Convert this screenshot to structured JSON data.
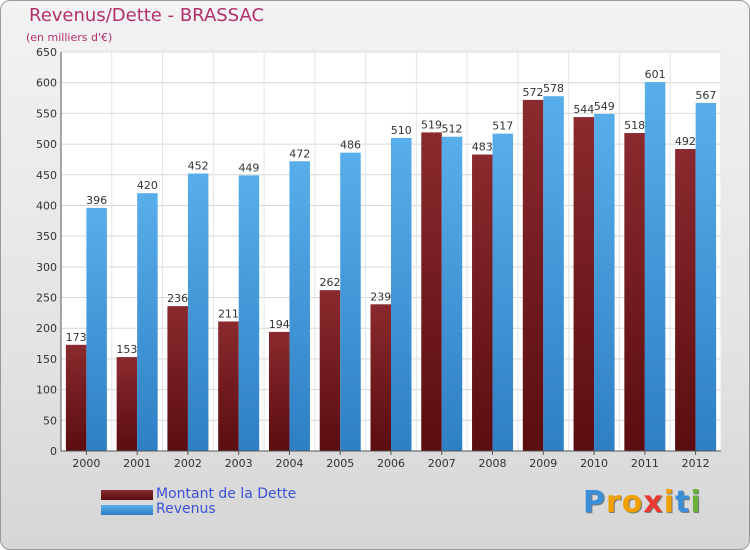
{
  "title": "Revenus/Dette - BRASSAC",
  "subtitle": "(en milliers d'€)",
  "colors": {
    "dette": "#7a1f23",
    "revenus": "#4ca3e3",
    "title": "#b0306a",
    "legend_text": "#3d52d6"
  },
  "chart_data": {
    "type": "bar",
    "categories": [
      "2000",
      "2001",
      "2002",
      "2003",
      "2004",
      "2005",
      "2006",
      "2007",
      "2008",
      "2009",
      "2010",
      "2011",
      "2012"
    ],
    "series": [
      {
        "name": "Montant de la Dette",
        "values": [
          173,
          153,
          236,
          211,
          194,
          262,
          239,
          519,
          483,
          572,
          544,
          518,
          492
        ]
      },
      {
        "name": "Revenus",
        "values": [
          396,
          420,
          452,
          449,
          472,
          486,
          510,
          512,
          517,
          578,
          549,
          601,
          567
        ]
      }
    ],
    "ylim": [
      0,
      650
    ],
    "yticks": [
      0,
      50,
      100,
      150,
      200,
      250,
      300,
      350,
      400,
      450,
      500,
      550,
      600,
      650
    ],
    "grid": true,
    "legend": "bottom-left"
  },
  "legend": {
    "dette_label": "Montant de la Dette",
    "revenus_label": "Revenus"
  },
  "logo": {
    "letters": [
      "P",
      "r",
      "o",
      "x",
      "i",
      "t",
      "i"
    ],
    "colors": [
      "#3a8fd8",
      "#f0a000",
      "#f0a000",
      "#e83a30",
      "#f0a000",
      "#3a8fd8",
      "#6ab03a"
    ]
  }
}
